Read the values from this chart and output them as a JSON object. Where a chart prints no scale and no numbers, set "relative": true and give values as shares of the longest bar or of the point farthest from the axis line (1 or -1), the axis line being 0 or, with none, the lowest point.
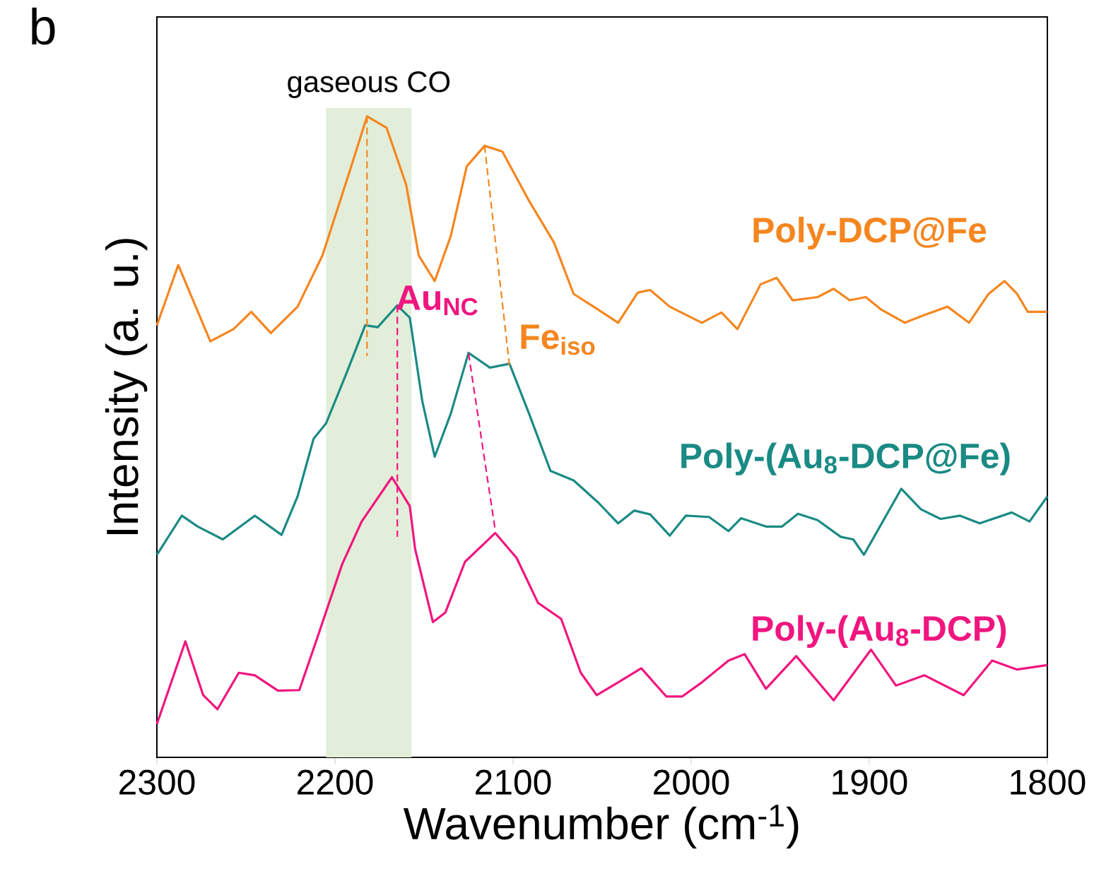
{
  "chart_data": {
    "type": "line",
    "relative": true,
    "xlabel": "Wavenumber (cm$^{-1}$)",
    "ylabel": "Intensity (a. u.)",
    "xlim": [
      2300,
      1800
    ],
    "xticks": [
      2300,
      2200,
      2100,
      2000,
      1900,
      1800
    ],
    "grid": false,
    "marker": "none",
    "line_style": "solid",
    "bands": [
      {
        "axis": "x",
        "from": 2205,
        "to": 2157,
        "label": "gaseous CO",
        "color": "#e2eed9"
      }
    ],
    "annotations": [
      "b",
      "Au$_{NC}$",
      "Fe$_{iso}$"
    ],
    "series": [
      {
        "name": "Poly-DCP@Fe",
        "color": "#f5861f",
        "x": [
          2300,
          2288,
          2270,
          2257,
          2247,
          2236,
          2221,
          2207,
          2192,
          2182,
          2171,
          2160,
          2153,
          2144,
          2135,
          2126,
          2116,
          2106,
          2091,
          2077,
          2066,
          2052,
          2041,
          2030,
          2023,
          2012,
          1994,
          1983,
          1974,
          1961,
          1952,
          1943,
          1929,
          1920,
          1911,
          1902,
          1893,
          1880,
          1871,
          1856,
          1844,
          1833,
          1824,
          1817,
          1811,
          1800
        ],
        "values": [
          0.674,
          0.768,
          0.649,
          0.668,
          0.695,
          0.662,
          0.703,
          0.783,
          0.912,
          1.0,
          0.982,
          0.893,
          0.783,
          0.743,
          0.813,
          0.922,
          0.954,
          0.945,
          0.868,
          0.803,
          0.723,
          0.698,
          0.678,
          0.725,
          0.729,
          0.703,
          0.678,
          0.694,
          0.668,
          0.738,
          0.748,
          0.713,
          0.718,
          0.731,
          0.713,
          0.718,
          0.698,
          0.678,
          0.688,
          0.703,
          0.678,
          0.723,
          0.743,
          0.723,
          0.695,
          0.695
        ]
      },
      {
        "name": "Poly-(Au$_{8}$-DCP@Fe)",
        "color": "#1a8a84",
        "x": [
          2300,
          2286,
          2277,
          2263,
          2245,
          2230,
          2221,
          2212,
          2205,
          2194,
          2183,
          2176,
          2165,
          2158,
          2151,
          2144,
          2135,
          2125,
          2113,
          2102,
          2091,
          2079,
          2066,
          2052,
          2041,
          2032,
          2023,
          2012,
          2003,
          1990,
          1979,
          1972,
          1958,
          1949,
          1940,
          1929,
          1916,
          1909,
          1903,
          1882,
          1871,
          1860,
          1849,
          1838,
          1820,
          1810,
          1800
        ],
        "values": [
          0.316,
          0.377,
          0.36,
          0.34,
          0.377,
          0.347,
          0.407,
          0.497,
          0.521,
          0.596,
          0.674,
          0.671,
          0.705,
          0.686,
          0.556,
          0.469,
          0.536,
          0.631,
          0.608,
          0.614,
          0.536,
          0.447,
          0.432,
          0.397,
          0.365,
          0.385,
          0.379,
          0.346,
          0.377,
          0.375,
          0.353,
          0.373,
          0.36,
          0.36,
          0.38,
          0.37,
          0.344,
          0.34,
          0.316,
          0.419,
          0.387,
          0.372,
          0.377,
          0.365,
          0.382,
          0.368,
          0.407
        ]
      },
      {
        "name": "Poly-(Au$_{8}$-DCP)",
        "color": "#f0157f",
        "x": [
          2300,
          2284,
          2274,
          2266,
          2254,
          2245,
          2232,
          2220,
          2210,
          2196,
          2185,
          2168,
          2158,
          2155,
          2145,
          2138,
          2127,
          2110,
          2098,
          2086,
          2073,
          2062,
          2053,
          2041,
          2028,
          2014,
          2005,
          1994,
          1979,
          1970,
          1958,
          1941,
          1920,
          1899,
          1885,
          1869,
          1847,
          1831,
          1817,
          1800
        ],
        "values": [
          0.052,
          0.181,
          0.097,
          0.075,
          0.132,
          0.128,
          0.104,
          0.105,
          0.186,
          0.301,
          0.368,
          0.437,
          0.392,
          0.325,
          0.211,
          0.226,
          0.305,
          0.35,
          0.311,
          0.241,
          0.216,
          0.132,
          0.097,
          0.117,
          0.139,
          0.095,
          0.095,
          0.117,
          0.151,
          0.161,
          0.107,
          0.158,
          0.089,
          0.168,
          0.112,
          0.128,
          0.097,
          0.151,
          0.137,
          0.144
        ]
      },
      {
        "type": "line",
        "line_style": "dashed",
        "color": "#f5861f",
        "x": [
          2182,
          2182
        ],
        "values": [
          1.0,
          0.626
        ]
      },
      {
        "type": "line",
        "line_style": "dashed",
        "color": "#f5861f",
        "x": [
          2116,
          2102
        ],
        "values": [
          0.954,
          0.61
        ]
      },
      {
        "type": "line",
        "line_style": "dashed",
        "color": "#f0157f",
        "x": [
          2165,
          2165
        ],
        "values": [
          0.705,
          0.344
        ]
      },
      {
        "type": "line",
        "line_style": "dashed",
        "color": "#f0157f",
        "x": [
          2125,
          2110
        ],
        "values": [
          0.63,
          0.354
        ]
      }
    ]
  }
}
